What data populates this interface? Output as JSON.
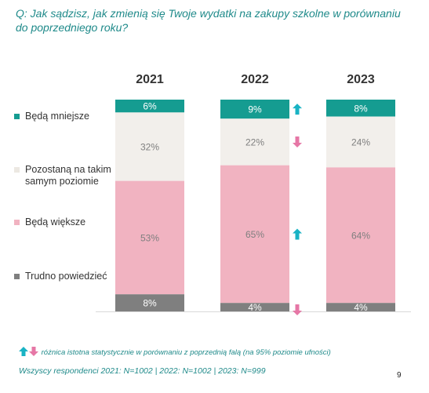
{
  "question": "Q: Jak sądzisz, jak zmienią się Twoje wydatki na zakupy szkolne w porównaniu do poprzedniego roku?",
  "legend": [
    {
      "label": "Będą mniejsze",
      "color": "#159c91"
    },
    {
      "label": "Pozostaną na takim samym poziomie",
      "color": "#f2efeb"
    },
    {
      "label": "Będą większe",
      "color": "#f1b3c1"
    },
    {
      "label": "Trudno powiedzieć",
      "color": "#7f7f7f"
    }
  ],
  "chart_data": {
    "type": "bar",
    "stacked": true,
    "percent": true,
    "categories": [
      "2021",
      "2022",
      "2023"
    ],
    "series": [
      {
        "name": "Będą mniejsze",
        "values": [
          6,
          9,
          8
        ],
        "color": "#159c91",
        "labels": [
          "6%",
          "9%",
          "8%"
        ]
      },
      {
        "name": "Pozostaną na takim samym poziomie",
        "values": [
          32,
          22,
          24
        ],
        "color": "#f2efeb",
        "labels": [
          "32%",
          "22%",
          "24%"
        ]
      },
      {
        "name": "Będą większe",
        "values": [
          53,
          65,
          64
        ],
        "color": "#f1b3c1",
        "labels": [
          "53%",
          "65%",
          "64%"
        ]
      },
      {
        "name": "Trudno powiedzieć",
        "values": [
          8,
          4,
          4
        ],
        "color": "#7f7f7f",
        "labels": [
          "8%",
          "4%",
          "4%"
        ]
      }
    ],
    "significance": [
      {
        "category": "2022",
        "series": "Będą mniejsze",
        "direction": "up"
      },
      {
        "category": "2022",
        "series": "Pozostaną na takim samym poziomie",
        "direction": "down"
      },
      {
        "category": "2022",
        "series": "Będą większe",
        "direction": "up"
      },
      {
        "category": "2022",
        "series": "Trudno powiedzieć",
        "direction": "down"
      }
    ],
    "colors": {
      "up": "#19b3c4",
      "down": "#e677a6"
    }
  },
  "note": "różnica istotna statystycznie w porównaniu z poprzednią falą (na 95% poziomie ufności)",
  "footer": "Wszyscy respondenci 2021: N=1002 | 2022: N=1002 | 2023: N=999",
  "page_number": "9"
}
